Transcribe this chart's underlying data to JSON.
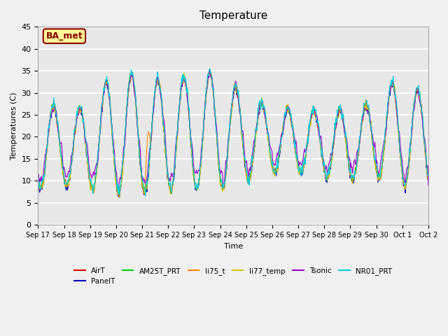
{
  "title": "Temperature",
  "ylabel": "Temperatures (C)",
  "xlabel": "Time",
  "annotation": "BA_met",
  "ylim": [
    0,
    45
  ],
  "yticks": [
    0,
    5,
    10,
    15,
    20,
    25,
    30,
    35,
    40,
    45
  ],
  "series_names": [
    "AirT",
    "PanelT",
    "AM25T_PRT",
    "li75_t",
    "li77_temp",
    "Tsonic",
    "NR01_PRT"
  ],
  "series_colors": [
    "#dd0000",
    "#0000bb",
    "#00cc00",
    "#ff8800",
    "#cccc00",
    "#9900cc",
    "#00ccdd"
  ],
  "x_tick_labels": [
    "Sep 17",
    "Sep 18",
    "Sep 19",
    "Sep 20",
    "Sep 21",
    "Sep 22",
    "Sep 23",
    "Sep 24",
    "Sep 25",
    "Sep 26",
    "Sep 27",
    "Sep 28",
    "Sep 29",
    "Sep 30",
    "Oct 1",
    "Oct 2"
  ],
  "background_color": "#e8e8e8",
  "grid_color": "#ffffff",
  "annotation_bg": "#ffff99",
  "annotation_border": "#880000",
  "annotation_text_color": "#880000"
}
